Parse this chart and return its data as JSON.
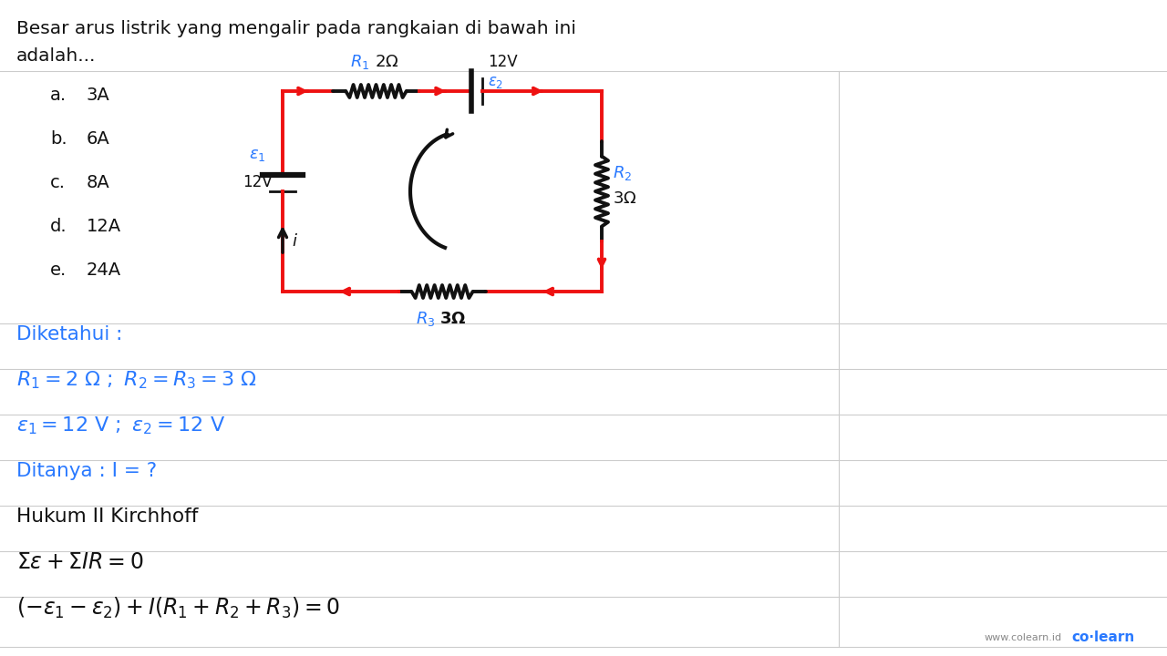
{
  "title_line1": "Besar arus listrik yang mengalir pada rangkaian di bawah ini",
  "title_line2": "adalah...",
  "options": [
    [
      "a.",
      "3A"
    ],
    [
      "b.",
      "6A"
    ],
    [
      "c.",
      "8A"
    ],
    [
      "d.",
      "12A"
    ],
    [
      "e.",
      "24A"
    ]
  ],
  "blue_color": "#2979FF",
  "red_color": "#EE1111",
  "black_color": "#111111",
  "bg_color": "#FFFFFF",
  "grid_color": "#CCCCCC",
  "colearn_gray": "#888888",
  "colearn_blue": "#2979FF"
}
